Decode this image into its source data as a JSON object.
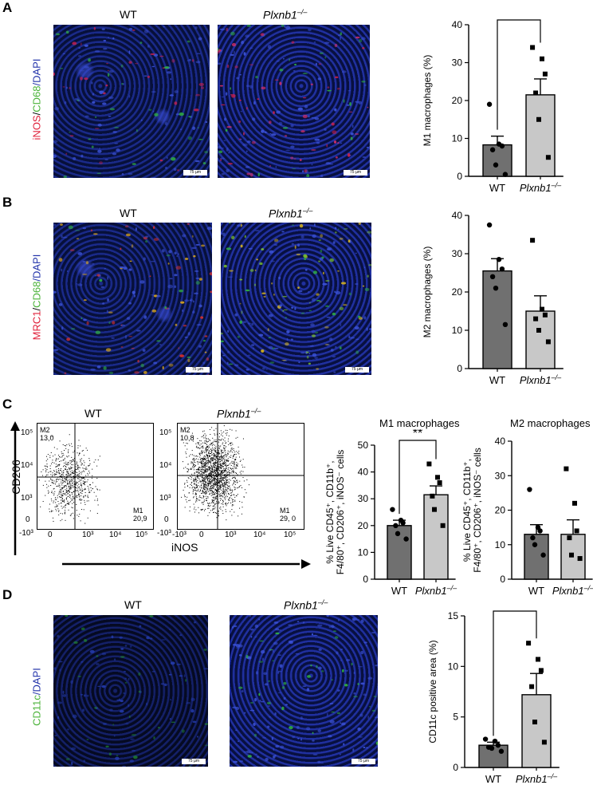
{
  "panels": {
    "A": {
      "letter": "A",
      "wt": "WT",
      "ko": "Plxnb1",
      "ko_sup": "–/–",
      "stain": [
        {
          "text": "iNOS",
          "color": "#e0203a"
        },
        {
          "text": "/",
          "color": "#000000"
        },
        {
          "text": "CD68",
          "color": "#4bb33a"
        },
        {
          "text": "/DAPI",
          "color": "#2233aa"
        }
      ],
      "scale_wt": "75 µm",
      "scale_ko": "75 µm",
      "chart_data": {
        "type": "bar",
        "categories": [
          "WT",
          "Plxnb1–/–"
        ],
        "values": [
          8.3,
          21.5
        ],
        "sem": [
          2.3,
          4.2
        ],
        "points": [
          [
            19,
            8.5,
            8,
            7,
            3,
            0.5
          ],
          [
            34,
            31,
            27,
            22,
            15,
            5
          ]
        ],
        "ylabel": "M1 macrophages (%)",
        "ylim": [
          0,
          40
        ],
        "yticks": [
          0,
          10,
          20,
          30,
          40
        ],
        "sig": "*",
        "colors": [
          "#707070",
          "#c8c8c8"
        ]
      }
    },
    "B": {
      "letter": "B",
      "wt": "WT",
      "ko": "Plxnb1",
      "ko_sup": "–/–",
      "stain": [
        {
          "text": "MRC1",
          "color": "#e0203a"
        },
        {
          "text": "/",
          "color": "#000000"
        },
        {
          "text": "CD68",
          "color": "#4bb33a"
        },
        {
          "text": "/DAPI",
          "color": "#2233aa"
        }
      ],
      "scale_wt": "75 µm",
      "scale_ko": "75 µm",
      "chart_data": {
        "type": "bar",
        "categories": [
          "WT",
          "Plxnb1–/–"
        ],
        "values": [
          25.5,
          15
        ],
        "sem": [
          3.2,
          4.0
        ],
        "points": [
          [
            37.5,
            28.5,
            26,
            24,
            21,
            11.5
          ],
          [
            33.5,
            15.5,
            14,
            13,
            10,
            7
          ]
        ],
        "ylabel": "M2 macrophages (%)",
        "ylim": [
          0,
          40
        ],
        "yticks": [
          0,
          10,
          20,
          30,
          40
        ],
        "sig": "",
        "colors": [
          "#707070",
          "#c8c8c8"
        ]
      }
    },
    "C": {
      "letter": "C",
      "wt": "WT",
      "ko": "Plxnb1",
      "ko_sup": "–/–",
      "ylabel": "CD206",
      "xlabel": "iNOS",
      "flow_wt": {
        "m2_label": "M2",
        "m2_value": "13,0",
        "m1_label": "M1",
        "m1_value": "20,9"
      },
      "flow_ko": {
        "m2_label": "M2",
        "m2_value": "10,8",
        "m1_label": "M1",
        "m1_value": "29, 0"
      },
      "flow_yticks_wt": [
        "10⁵",
        "10⁴",
        "10³",
        "0",
        "-10³"
      ],
      "flow_yticks_ko": [
        "10⁵",
        "10⁴",
        "10³",
        "0",
        "-10³"
      ],
      "flow_xticks": [
        "0",
        "10³",
        "10⁴",
        "10⁵"
      ],
      "flow_xticks_ko": [
        "-10³",
        "0",
        "10³",
        "10⁴",
        "10⁵"
      ],
      "m1_title": "M1 macrophages",
      "m2_title": "M2 macrophages",
      "chart_data": [
        {
          "type": "bar",
          "categories": [
            "WT",
            "Plxnb1–/–"
          ],
          "values": [
            20,
            31.5
          ],
          "sem": [
            2.0,
            3.3
          ],
          "points": [
            [
              26,
              22,
              21,
              20,
              17,
              15
            ],
            [
              43,
              38,
              36,
              31,
              26,
              20
            ]
          ],
          "ylabel": "% Live CD45⁺, CD11b⁺, F4/80⁺, CD206⁺, iNOS⁻ cells",
          "ylim": [
            0,
            50
          ],
          "yticks": [
            0,
            10,
            20,
            30,
            40,
            50
          ],
          "sig": "**",
          "colors": [
            "#707070",
            "#c8c8c8"
          ]
        },
        {
          "type": "bar",
          "categories": [
            "WT",
            "Plxnb1–/–"
          ],
          "values": [
            13,
            13
          ],
          "sem": [
            2.8,
            4.2
          ],
          "points": [
            [
              26,
              15,
              14,
              12,
              10,
              7
            ],
            [
              32,
              22,
              14,
              12,
              7,
              6
            ]
          ],
          "ylabel": "% Live CD45⁺, CD11b⁺, F4/80⁺, CD206⁺, iNOS⁻ cells",
          "ylim": [
            0,
            40
          ],
          "yticks": [
            0,
            10,
            20,
            30,
            40
          ],
          "sig": "",
          "colors": [
            "#707070",
            "#c8c8c8"
          ]
        }
      ]
    },
    "D": {
      "letter": "D",
      "wt": "WT",
      "ko": "Plxnb1",
      "ko_sup": "–/–",
      "stain": [
        {
          "text": "CD11c",
          "color": "#4bb33a"
        },
        {
          "text": "/DAPI",
          "color": "#2233aa"
        }
      ],
      "scale_wt": "75 µm",
      "scale_ko": "75 µm",
      "chart_data": {
        "type": "bar",
        "categories": [
          "WT",
          "Plxnb1–/–"
        ],
        "values": [
          2.2,
          7.2
        ],
        "sem": [
          0.3,
          2.1
        ],
        "points": [
          [
            2.8,
            2.6,
            2.2,
            2.0,
            1.9,
            1.6
          ],
          [
            12.3,
            10.7,
            9.6,
            8.0,
            4.5,
            2.5
          ]
        ],
        "ylabel": "CD11c positive area (%)",
        "ylim": [
          0,
          15
        ],
        "yticks": [
          0,
          5,
          10,
          15
        ],
        "sig": "*",
        "colors": [
          "#707070",
          "#c8c8c8"
        ]
      }
    }
  }
}
